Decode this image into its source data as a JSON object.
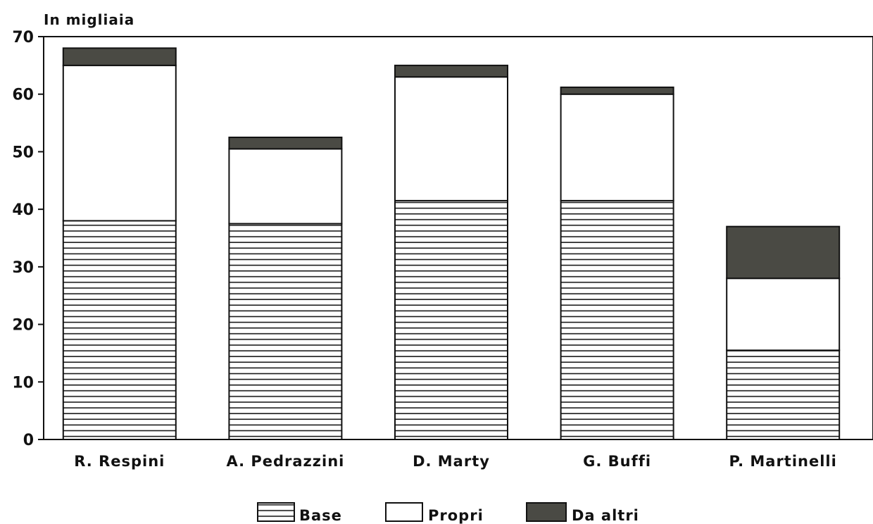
{
  "chart_data": {
    "type": "bar",
    "stacked": true,
    "unit_label": "In migliaia",
    "categories": [
      "R. Respini",
      "A. Pedrazzini",
      "D. Marty",
      "G. Buffi",
      "P. Martinelli"
    ],
    "series": [
      {
        "name": "Base",
        "values": [
          38,
          37.5,
          41.5,
          41.5,
          15.5
        ],
        "fill": "hatched",
        "color": "#ffffff"
      },
      {
        "name": "Propri",
        "values": [
          27,
          13,
          21.5,
          18.5,
          12.5
        ],
        "fill": "solid",
        "color": "#ffffff"
      },
      {
        "name": "Da altri",
        "values": [
          3,
          2,
          2,
          1.2,
          9
        ],
        "fill": "solid",
        "color": "#4a4a44"
      }
    ],
    "ylim": [
      0,
      70
    ],
    "yticks": [
      "0",
      "10",
      "20",
      "30",
      "40",
      "50",
      "60",
      "70"
    ],
    "legend_position": "bottom",
    "grid": false
  }
}
